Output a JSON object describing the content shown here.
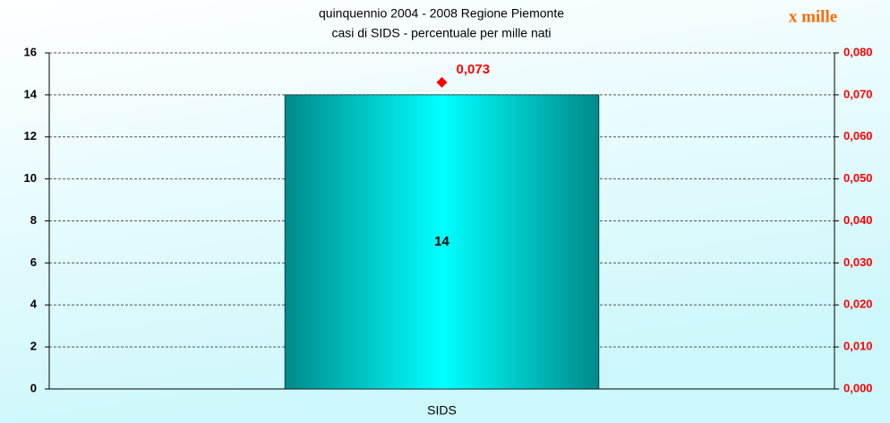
{
  "chart_data": {
    "type": "bar",
    "title": "quinquennio 2004 - 2008 Regione Piemonte",
    "subtitle": "casi di SIDS - percentuale per mille nati",
    "annotation": "x mille",
    "categories": [
      "SIDS"
    ],
    "series": [
      {
        "color": "#00e5e5",
        "values": [
          14
        ]
      },
      {
        "color": "#ff0000",
        "axis": "y2",
        "values": [
          0.073
        ],
        "value_labels": [
          "0,073"
        ]
      }
    ],
    "ylim": [
      0,
      16
    ],
    "yticks": [
      0,
      2,
      4,
      6,
      8,
      10,
      12,
      14,
      16
    ],
    "y2lim": [
      0,
      0.08
    ],
    "y2ticks": [
      {
        "value": 0,
        "label": "0,000"
      },
      {
        "value": 0.01,
        "label": "0,010"
      },
      {
        "value": 0.02,
        "label": "0,020"
      },
      {
        "value": 0.03,
        "label": "0,030"
      },
      {
        "value": 0.04,
        "label": "0,040"
      },
      {
        "value": 0.05,
        "label": "0,050"
      },
      {
        "value": 0.06,
        "label": "0,060"
      },
      {
        "value": 0.07,
        "label": "0,070"
      },
      {
        "value": 0.08,
        "label": "0,080"
      }
    ],
    "grid": true
  }
}
